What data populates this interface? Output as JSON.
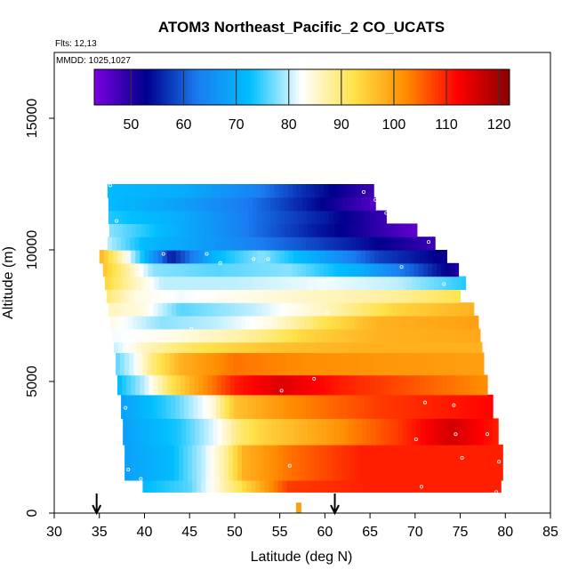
{
  "chart_data": {
    "type": "heatmap",
    "title": "ATOM3 Northeast_Pacific_2 CO_UCATS",
    "xlabel": "Latitude (deg N)",
    "ylabel": "Altitude (m)",
    "xlim": [
      30,
      85
    ],
    "ylim": [
      0,
      17500
    ],
    "x_ticks": [
      "30",
      "35",
      "40",
      "45",
      "50",
      "55",
      "60",
      "65",
      "70",
      "75",
      "80",
      "85"
    ],
    "y_ticks": [
      "0",
      "5000",
      "10000",
      "15000"
    ],
    "flights_note": "Flts: 12,13",
    "dates_note": "MMDD: 1025,1027",
    "colorbar": {
      "min": 43,
      "max": 122,
      "ticks": [
        "50",
        "60",
        "70",
        "80",
        "90",
        "100",
        "110",
        "120"
      ],
      "colors": [
        "#7a00e0",
        "#00008c",
        "#1a7df2",
        "#00bfff",
        "#ffffff",
        "#ffe24a",
        "#ff8c00",
        "#ff0000",
        "#8b0000"
      ]
    },
    "arrows_latitude": [
      34.7,
      61.1
    ],
    "layers": [
      {
        "alt_min": 800,
        "alt_max": 1250,
        "lat_min": 39.8,
        "lat_max": 79.5,
        "values": [
          {
            "lat": 39.8,
            "co": 72
          },
          {
            "lat": 45,
            "co": 76
          },
          {
            "lat": 48.5,
            "co": 86
          },
          {
            "lat": 52,
            "co": 96
          },
          {
            "lat": 56,
            "co": 108
          },
          {
            "lat": 65,
            "co": 110
          },
          {
            "lat": 79.5,
            "co": 110
          }
        ]
      },
      {
        "alt_min": 1250,
        "alt_max": 2600,
        "lat_min": 37.8,
        "lat_max": 79.7,
        "values": [
          {
            "lat": 37.8,
            "co": 68
          },
          {
            "lat": 43,
            "co": 72
          },
          {
            "lat": 46.5,
            "co": 80
          },
          {
            "lat": 49,
            "co": 88
          },
          {
            "lat": 51,
            "co": 98
          },
          {
            "lat": 56,
            "co": 104
          },
          {
            "lat": 64,
            "co": 110
          },
          {
            "lat": 79.7,
            "co": 110
          }
        ]
      },
      {
        "alt_min": 2600,
        "alt_max": 3600,
        "lat_min": 37.6,
        "lat_max": 79.2,
        "values": [
          {
            "lat": 37.6,
            "co": 68
          },
          {
            "lat": 44,
            "co": 74
          },
          {
            "lat": 48,
            "co": 82
          },
          {
            "lat": 50.5,
            "co": 90
          },
          {
            "lat": 53,
            "co": 94
          },
          {
            "lat": 60,
            "co": 100
          },
          {
            "lat": 68,
            "co": 108
          },
          {
            "lat": 74,
            "co": 116
          },
          {
            "lat": 79.2,
            "co": 110
          }
        ]
      },
      {
        "alt_min": 3600,
        "alt_max": 4500,
        "lat_min": 37.4,
        "lat_max": 78.6,
        "values": [
          {
            "lat": 37.4,
            "co": 68
          },
          {
            "lat": 43.5,
            "co": 76
          },
          {
            "lat": 47.5,
            "co": 84
          },
          {
            "lat": 50,
            "co": 96
          },
          {
            "lat": 56,
            "co": 102
          },
          {
            "lat": 66,
            "co": 108
          },
          {
            "lat": 78.6,
            "co": 112
          }
        ]
      },
      {
        "alt_min": 4500,
        "alt_max": 5250,
        "lat_min": 37,
        "lat_max": 78,
        "values": [
          {
            "lat": 37,
            "co": 72
          },
          {
            "lat": 40,
            "co": 80
          },
          {
            "lat": 43,
            "co": 92
          },
          {
            "lat": 46,
            "co": 100
          },
          {
            "lat": 50,
            "co": 110
          },
          {
            "lat": 55,
            "co": 115
          },
          {
            "lat": 62,
            "co": 110
          },
          {
            "lat": 70,
            "co": 106
          },
          {
            "lat": 78,
            "co": 102
          }
        ]
      },
      {
        "alt_min": 5250,
        "alt_max": 6100,
        "lat_min": 36.8,
        "lat_max": 77.6,
        "values": [
          {
            "lat": 36.8,
            "co": 76
          },
          {
            "lat": 39,
            "co": 82
          },
          {
            "lat": 41,
            "co": 90
          },
          {
            "lat": 44,
            "co": 98
          },
          {
            "lat": 50,
            "co": 104
          },
          {
            "lat": 58,
            "co": 102
          },
          {
            "lat": 77.6,
            "co": 100
          }
        ]
      },
      {
        "alt_min": 6100,
        "alt_max": 6500,
        "lat_min": 36.6,
        "lat_max": 77.4,
        "values": [
          {
            "lat": 36.6,
            "co": 80
          },
          {
            "lat": 40,
            "co": 86
          },
          {
            "lat": 46,
            "co": 92
          },
          {
            "lat": 54,
            "co": 96
          },
          {
            "lat": 64,
            "co": 98
          },
          {
            "lat": 77.4,
            "co": 98
          }
        ]
      },
      {
        "alt_min": 6500,
        "alt_max": 7000,
        "lat_min": 36.4,
        "lat_max": 77.2,
        "values": [
          {
            "lat": 36.4,
            "co": 82
          },
          {
            "lat": 44,
            "co": 84
          },
          {
            "lat": 52,
            "co": 88
          },
          {
            "lat": 58,
            "co": 94
          },
          {
            "lat": 66,
            "co": 98
          },
          {
            "lat": 77.2,
            "co": 99
          }
        ]
      },
      {
        "alt_min": 7000,
        "alt_max": 7500,
        "lat_min": 36.2,
        "lat_max": 77,
        "values": [
          {
            "lat": 36.2,
            "co": 84
          },
          {
            "lat": 42,
            "co": 78
          },
          {
            "lat": 48,
            "co": 80
          },
          {
            "lat": 54,
            "co": 84
          },
          {
            "lat": 60,
            "co": 92
          },
          {
            "lat": 66,
            "co": 98
          },
          {
            "lat": 77,
            "co": 100
          }
        ]
      },
      {
        "alt_min": 7500,
        "alt_max": 8000,
        "lat_min": 36,
        "lat_max": 76.5,
        "values": [
          {
            "lat": 36,
            "co": 86
          },
          {
            "lat": 40,
            "co": 84
          },
          {
            "lat": 44,
            "co": 76
          },
          {
            "lat": 52,
            "co": 80
          },
          {
            "lat": 60,
            "co": 86
          },
          {
            "lat": 68,
            "co": 94
          },
          {
            "lat": 76.5,
            "co": 98
          }
        ]
      },
      {
        "alt_min": 8000,
        "alt_max": 8500,
        "lat_min": 35.8,
        "lat_max": 75,
        "values": [
          {
            "lat": 35.8,
            "co": 90
          },
          {
            "lat": 39,
            "co": 84
          },
          {
            "lat": 44,
            "co": 82
          },
          {
            "lat": 52,
            "co": 84
          },
          {
            "lat": 60,
            "co": 86
          },
          {
            "lat": 68,
            "co": 88
          },
          {
            "lat": 75,
            "co": 92
          }
        ]
      },
      {
        "alt_min": 8500,
        "alt_max": 9000,
        "lat_min": 35.6,
        "lat_max": 75.6,
        "values": [
          {
            "lat": 35.6,
            "co": 94
          },
          {
            "lat": 38,
            "co": 88
          },
          {
            "lat": 42,
            "co": 80
          },
          {
            "lat": 50,
            "co": 80
          },
          {
            "lat": 60,
            "co": 82
          },
          {
            "lat": 68,
            "co": 80
          },
          {
            "lat": 75.6,
            "co": 74
          }
        ]
      },
      {
        "alt_min": 9000,
        "alt_max": 9500,
        "lat_min": 35.4,
        "lat_max": 74.8,
        "values": [
          {
            "lat": 35.4,
            "co": 96
          },
          {
            "lat": 38,
            "co": 88
          },
          {
            "lat": 41,
            "co": 78
          },
          {
            "lat": 48,
            "co": 76
          },
          {
            "lat": 56,
            "co": 78
          },
          {
            "lat": 64,
            "co": 70
          },
          {
            "lat": 70,
            "co": 60
          },
          {
            "lat": 74.8,
            "co": 50
          }
        ]
      },
      {
        "alt_min": 9500,
        "alt_max": 10000,
        "lat_min": 35,
        "lat_max": 73.5,
        "values": [
          {
            "lat": 35,
            "co": 98
          },
          {
            "lat": 37.5,
            "co": 86
          },
          {
            "lat": 40,
            "co": 72
          },
          {
            "lat": 43,
            "co": 55
          },
          {
            "lat": 48,
            "co": 72
          },
          {
            "lat": 53,
            "co": 78
          },
          {
            "lat": 60,
            "co": 68
          },
          {
            "lat": 66,
            "co": 58
          },
          {
            "lat": 73.5,
            "co": 52
          }
        ]
      },
      {
        "alt_min": 10000,
        "alt_max": 10500,
        "lat_min": 35.9,
        "lat_max": 72.2,
        "values": [
          {
            "lat": 35.9,
            "co": 80
          },
          {
            "lat": 40,
            "co": 72
          },
          {
            "lat": 46,
            "co": 68
          },
          {
            "lat": 54,
            "co": 62
          },
          {
            "lat": 62,
            "co": 56
          },
          {
            "lat": 72.2,
            "co": 48
          }
        ]
      },
      {
        "alt_min": 10500,
        "alt_max": 11000,
        "lat_min": 36.1,
        "lat_max": 70.2,
        "values": [
          {
            "lat": 36.1,
            "co": 78
          },
          {
            "lat": 42,
            "co": 72
          },
          {
            "lat": 50,
            "co": 64
          },
          {
            "lat": 58,
            "co": 56
          },
          {
            "lat": 65,
            "co": 50
          },
          {
            "lat": 70.2,
            "co": 45
          }
        ]
      },
      {
        "alt_min": 11000,
        "alt_max": 11500,
        "lat_min": 36,
        "lat_max": 66.8,
        "values": [
          {
            "lat": 36,
            "co": 74
          },
          {
            "lat": 44,
            "co": 70
          },
          {
            "lat": 52,
            "co": 62
          },
          {
            "lat": 60,
            "co": 55
          },
          {
            "lat": 66.8,
            "co": 48
          }
        ]
      },
      {
        "alt_min": 11500,
        "alt_max": 12000,
        "lat_min": 36,
        "lat_max": 65.6,
        "values": [
          {
            "lat": 36,
            "co": 72
          },
          {
            "lat": 44,
            "co": 68
          },
          {
            "lat": 52,
            "co": 62
          },
          {
            "lat": 58,
            "co": 55
          },
          {
            "lat": 65.6,
            "co": 46
          }
        ]
      },
      {
        "alt_min": 12000,
        "alt_max": 12500,
        "lat_min": 35.9,
        "lat_max": 65.4,
        "values": [
          {
            "lat": 35.9,
            "co": 72
          },
          {
            "lat": 44,
            "co": 70
          },
          {
            "lat": 52,
            "co": 64
          },
          {
            "lat": 58,
            "co": 56
          },
          {
            "lat": 65.4,
            "co": 48
          }
        ]
      }
    ],
    "spike": {
      "lat": 57.1,
      "alt_min": 0,
      "alt_max": 400,
      "co": 100
    },
    "markers": [
      {
        "lat": 38.2,
        "alt": 1650
      },
      {
        "lat": 39.6,
        "alt": 1300
      },
      {
        "lat": 37.9,
        "alt": 4000
      },
      {
        "lat": 56.1,
        "alt": 1800
      },
      {
        "lat": 70.1,
        "alt": 2800
      },
      {
        "lat": 74.5,
        "alt": 3000
      },
      {
        "lat": 75.2,
        "alt": 2100
      },
      {
        "lat": 78.0,
        "alt": 3000
      },
      {
        "lat": 79.3,
        "alt": 1950
      },
      {
        "lat": 70.7,
        "alt": 1000
      },
      {
        "lat": 79.0,
        "alt": 800
      },
      {
        "lat": 71.1,
        "alt": 4200
      },
      {
        "lat": 74.3,
        "alt": 4100
      },
      {
        "lat": 55.2,
        "alt": 4650
      },
      {
        "lat": 58.8,
        "alt": 5100
      },
      {
        "lat": 45.2,
        "alt": 7000
      },
      {
        "lat": 60.3,
        "alt": 7600
      },
      {
        "lat": 73.2,
        "alt": 8700
      },
      {
        "lat": 68.5,
        "alt": 9350
      },
      {
        "lat": 42.1,
        "alt": 9850
      },
      {
        "lat": 46.9,
        "alt": 9850
      },
      {
        "lat": 52.1,
        "alt": 9650
      },
      {
        "lat": 53.7,
        "alt": 9650
      },
      {
        "lat": 48.4,
        "alt": 9500
      },
      {
        "lat": 71.5,
        "alt": 10300
      },
      {
        "lat": 66.8,
        "alt": 11400
      },
      {
        "lat": 64.3,
        "alt": 12200
      },
      {
        "lat": 65.6,
        "alt": 11900
      },
      {
        "lat": 36.9,
        "alt": 11100
      },
      {
        "lat": 36.2,
        "alt": 12450
      }
    ]
  }
}
